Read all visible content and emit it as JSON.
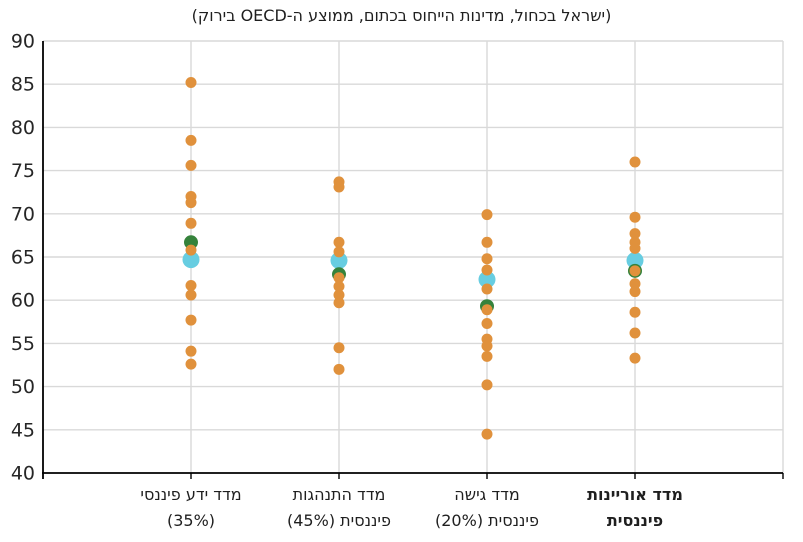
{
  "chart_data": {
    "type": "scatter",
    "title": "(ישראל בכחול, מדינות הייחוס בכתום, ממוצע ה-OECD בירוק)",
    "direction": "rtl",
    "ylim": [
      40,
      90
    ],
    "ytick_step": 5,
    "grid": true,
    "legend_position": "none",
    "series_colors": {
      "israel": "#67CDE1",
      "oecd_average": "#35823B",
      "reference_countries": "#E0913C"
    },
    "marker_radii": {
      "israel": 8.5,
      "oecd_average": 7,
      "reference_countries": 5.5
    },
    "axis_colors": {
      "gridline": "#D9D9D9",
      "axis_line": "#000000",
      "tick_label": "#262626"
    },
    "categories": [
      {
        "label_lines": [
          "מדד ידע פיננסי",
          "(35%)"
        ],
        "bold": false,
        "israel": 64.7,
        "oecd_average": 66.7,
        "reference_countries": [
          85.2,
          78.5,
          75.6,
          72.0,
          71.3,
          68.9,
          65.8,
          61.7,
          60.6,
          57.7,
          54.1,
          52.6
        ]
      },
      {
        "label_lines": [
          "מדד התנהגות",
          "פיננסית (45%)"
        ],
        "bold": false,
        "israel": 64.6,
        "oecd_average": 63.0,
        "reference_countries": [
          73.7,
          73.1,
          66.7,
          65.6,
          62.6,
          61.6,
          60.6,
          59.7,
          54.5,
          52.0
        ]
      },
      {
        "label_lines": [
          "מדד גישה",
          "פיננסית (20%)"
        ],
        "bold": false,
        "israel": 62.4,
        "oecd_average": 59.3,
        "reference_countries": [
          69.9,
          66.7,
          64.8,
          63.5,
          61.3,
          58.9,
          57.3,
          55.5,
          54.7,
          53.5,
          50.2,
          44.5
        ]
      },
      {
        "label_lines": [
          "מדד אוריינות",
          "פיננסית"
        ],
        "bold": true,
        "israel": 64.6,
        "oecd_average": 63.4,
        "reference_countries": [
          76.0,
          69.6,
          67.7,
          66.7,
          66.0,
          63.4,
          61.9,
          61.0,
          58.6,
          56.2,
          53.3
        ]
      }
    ]
  }
}
